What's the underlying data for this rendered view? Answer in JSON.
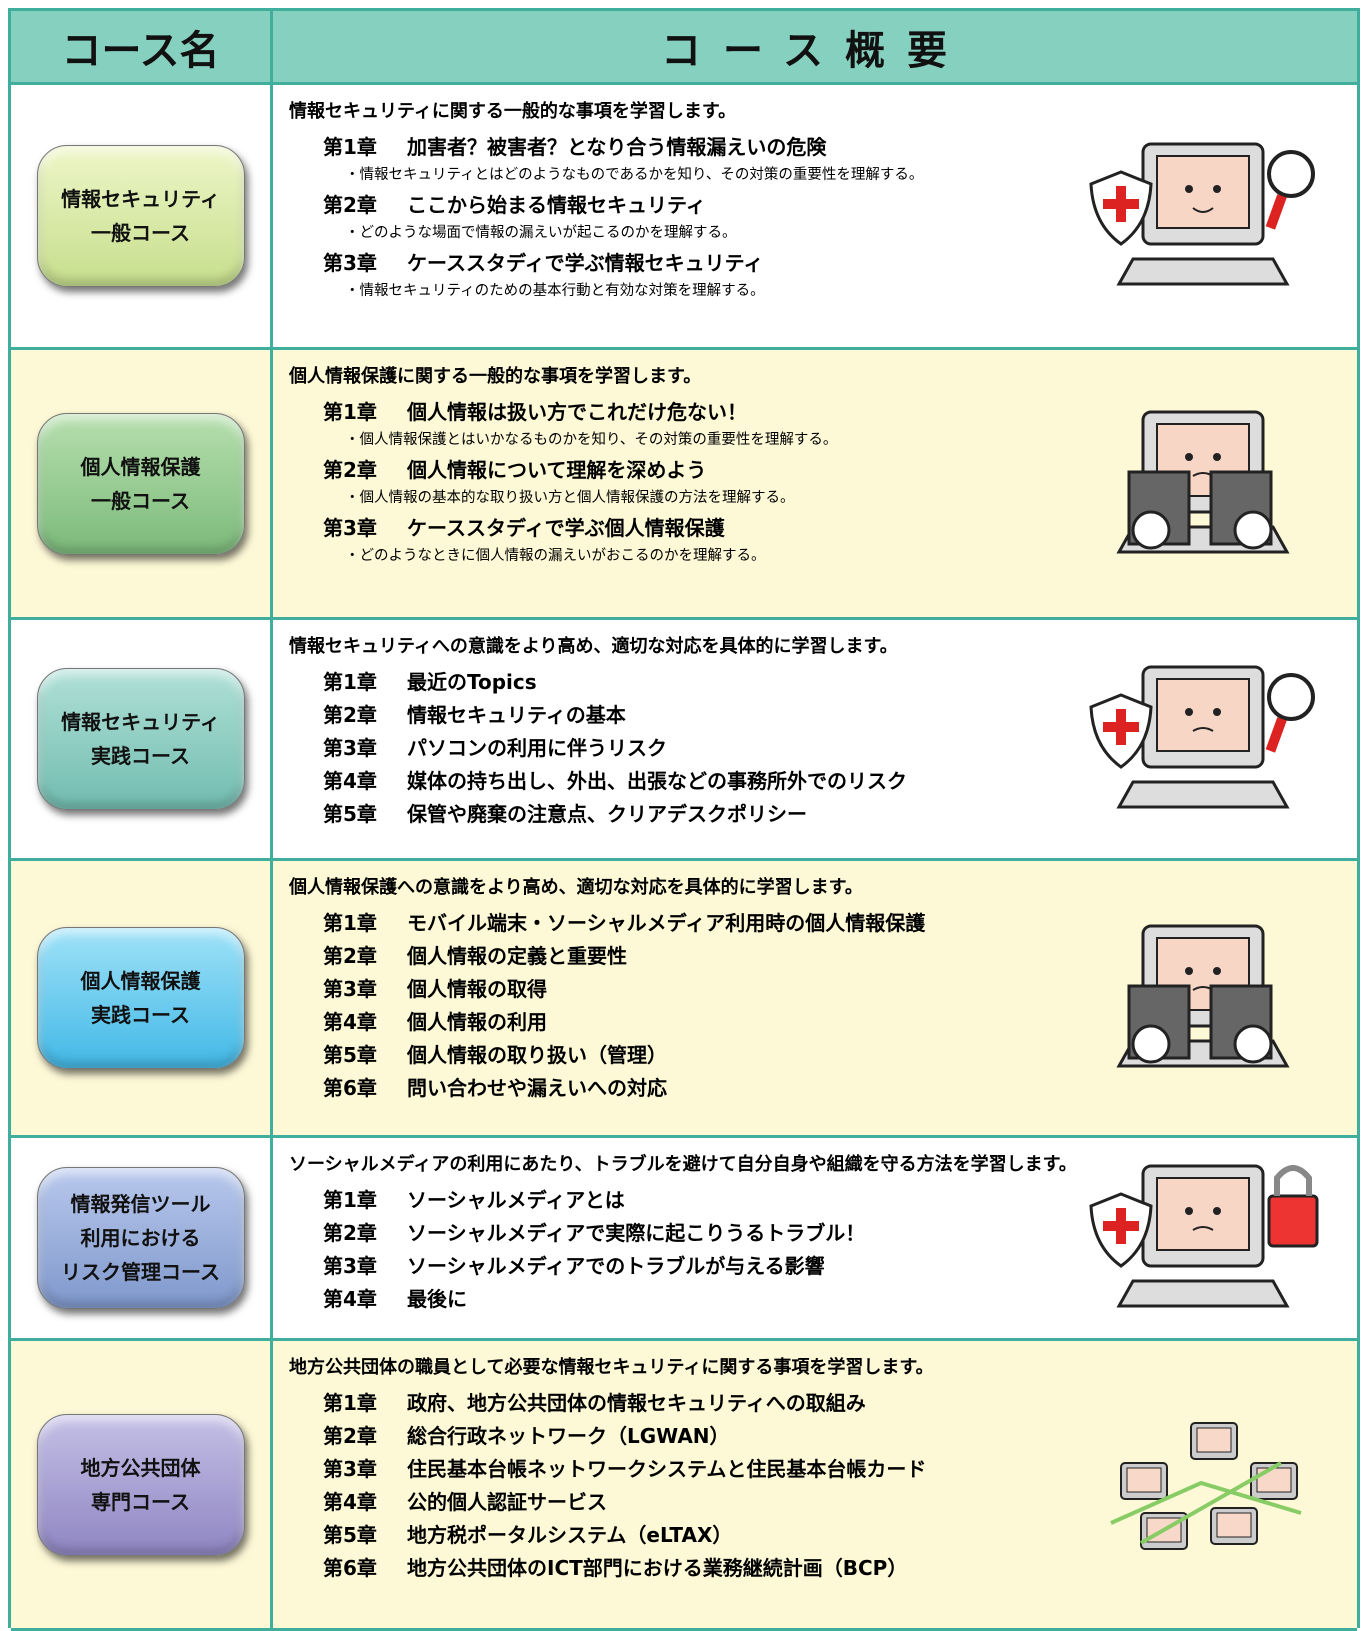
{
  "header": {
    "course_name": "コース名",
    "overview": "コース概要"
  },
  "courses": [
    {
      "name": [
        "情報セキュリティ",
        "一般コース"
      ],
      "intro": "情報セキュリティに関する一般的な事項を学習します。",
      "chapters": [
        {
          "number": "第1章",
          "title": "加害者？被害者？となり合う情報漏えいの危険",
          "note": "・情報セキュリティとはどのようなものであるかを知り、その対策の重要性を理解する。"
        },
        {
          "number": "第2章",
          "title": "ここから始まる情報セキュリティ",
          "note": "・どのような場面で情報の漏えいが起こるのかを理解する。"
        },
        {
          "number": "第3章",
          "title": "ケーススタディで学ぶ情報セキュリティ",
          "note": "・情報セキュリティのための基本行動と有効な対策を理解する。"
        }
      ]
    },
    {
      "name": [
        "個人情報保護",
        "一般コース"
      ],
      "intro": "個人情報保護に関する一般的な事項を学習します。",
      "chapters": [
        {
          "number": "第1章",
          "title": "個人情報は扱い方でこれだけ危ない！",
          "note": "・個人情報保護とはいかなるものかを知り、その対策の重要性を理解する。"
        },
        {
          "number": "第2章",
          "title": "個人情報について理解を深めよう",
          "note": "・個人情報の基本的な取り扱い方と個人情報保護の方法を理解する。"
        },
        {
          "number": "第3章",
          "title": "ケーススタディで学ぶ個人情報保護",
          "note": "・どのようなときに個人情報の漏えいがおこるのかを理解する。"
        }
      ]
    },
    {
      "name": [
        "情報セキュリティ",
        "実践コース"
      ],
      "intro": "情報セキュリティへの意識をより高め、適切な対応を具体的に学習します。",
      "chapters": [
        {
          "number": "第1章",
          "title": "最近のTopics"
        },
        {
          "number": "第2章",
          "title": "情報セキュリティの基本"
        },
        {
          "number": "第3章",
          "title": "パソコンの利用に伴うリスク"
        },
        {
          "number": "第4章",
          "title": "媒体の持ち出し、外出、出張などの事務所外でのリスク"
        },
        {
          "number": "第5章",
          "title": "保管や廃棄の注意点、クリアデスクポリシー"
        }
      ]
    },
    {
      "name": [
        "個人情報保護",
        "実践コース"
      ],
      "intro": "個人情報保護への意識をより高め、適切な対応を具体的に学習します。",
      "chapters": [
        {
          "number": "第1章",
          "title": "モバイル端末・ソーシャルメディア利用時の個人情報保護"
        },
        {
          "number": "第2章",
          "title": "個人情報の定義と重要性"
        },
        {
          "number": "第3章",
          "title": "個人情報の取得"
        },
        {
          "number": "第4章",
          "title": "個人情報の利用"
        },
        {
          "number": "第5章",
          "title": "個人情報の取り扱い（管理）"
        },
        {
          "number": "第6章",
          "title": "問い合わせや漏えいへの対応"
        }
      ]
    },
    {
      "name": [
        "情報発信ツール",
        "利用における",
        "リスク管理コース"
      ],
      "intro": "ソーシャルメディアの利用にあたり、トラブルを避けて自分自身や組織を守る方法を学習します。",
      "chapters": [
        {
          "number": "第1章",
          "title": "ソーシャルメディアとは"
        },
        {
          "number": "第2章",
          "title": "ソーシャルメディアで実際に起こりうるトラブル！"
        },
        {
          "number": "第3章",
          "title": "ソーシャルメディアでのトラブルが与える影響"
        },
        {
          "number": "第4章",
          "title": "最後に"
        }
      ]
    },
    {
      "name": [
        "地方公共団体",
        "専門コース"
      ],
      "intro": "地方公共団体の職員として必要な情報セキュリティに関する事項を学習します。",
      "chapters": [
        {
          "number": "第1章",
          "title": "政府、地方公共団体の情報セキュリティへの取組み"
        },
        {
          "number": "第2章",
          "title": "総合行政ネットワーク（LGWAN）"
        },
        {
          "number": "第3章",
          "title": "住民基本台帳ネットワークシステムと住民基本台帳カード"
        },
        {
          "number": "第4章",
          "title": "公的個人認証サービス"
        },
        {
          "number": "第5章",
          "title": "地方税ポータルシステム（eLTAX）"
        },
        {
          "number": "第6章",
          "title": "地方公共団体のICT部門における業務継続計画（BCP）"
        }
      ]
    }
  ]
}
